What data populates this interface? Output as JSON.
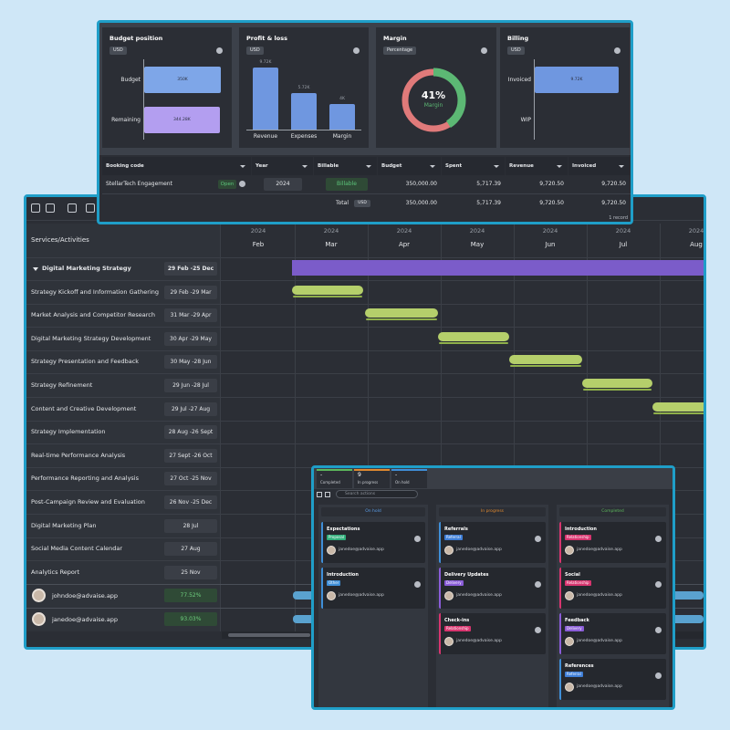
{
  "dashboard": {
    "budget_position": {
      "title": "Budget position",
      "tag": "USD",
      "categories": [
        "Budget",
        "Remaining"
      ],
      "values": [
        350000,
        344282.61
      ],
      "value_labels": [
        "350K",
        "344.28K"
      ],
      "colors": [
        "#7ea6e8",
        "#b39ef0"
      ]
    },
    "profit_loss": {
      "title": "Profit & loss",
      "tag": "USD",
      "categories": [
        "Revenue",
        "Expenses",
        "Margin"
      ],
      "values": [
        9720.5,
        5717.39,
        4003.11
      ],
      "value_labels": [
        "9.72K",
        "5.72K",
        "4K"
      ],
      "color": "#6f97e0"
    },
    "margin": {
      "title": "Margin",
      "tag": "Percentage",
      "value": 41,
      "value_label": "41%",
      "label": "Margin",
      "color": "#5cb874",
      "rest_color": "#e07a7a"
    },
    "billing": {
      "title": "Billing",
      "tag": "USD",
      "categories": [
        "Invoiced",
        "WIP"
      ],
      "values": [
        9720.5,
        0
      ],
      "value_labels": [
        "9.72K",
        null
      ],
      "color": "#6f97e0"
    }
  },
  "table": {
    "headers": [
      "Booking code",
      "Year",
      "Billable",
      "Budget",
      "Spent",
      "Revenue",
      "Invoiced"
    ],
    "row": {
      "name": "StellarTech Engagement",
      "status": "Open",
      "year": "2024",
      "billable": "Billable",
      "cells": [
        "350,000.00",
        "5,717.39",
        "9,720.50",
        "9,720.50"
      ]
    },
    "total": {
      "label": "Total",
      "currency": "USD",
      "cells": [
        "350,000.00",
        "5,717.39",
        "9,720.50",
        "9,720.50"
      ]
    },
    "footer": "1 record"
  },
  "gantt": {
    "header": "Services/Activities",
    "year": "2024",
    "months": [
      "Feb",
      "Mar",
      "Apr",
      "May",
      "Jun",
      "Jul",
      "Aug"
    ],
    "summary": {
      "name": "Digital Marketing Strategy",
      "dates": "29 Feb -25 Dec",
      "color": "#7b5cc9"
    },
    "bar_color": "#b5cf6b",
    "tasks": [
      {
        "name": "Strategy Kickoff and Information Gathering",
        "dates": "29 Feb -29 Mar"
      },
      {
        "name": "Market Analysis and Competitor Research",
        "dates": "31 Mar -29 Apr"
      },
      {
        "name": "Digital Marketing Strategy Development",
        "dates": "30 Apr -29 May"
      },
      {
        "name": "Strategy Presentation and Feedback",
        "dates": "30 May -28 Jun"
      },
      {
        "name": "Strategy Refinement",
        "dates": "29 Jun -28 Jul"
      },
      {
        "name": "Content and Creative Development",
        "dates": "29 Jul -27 Aug"
      },
      {
        "name": "Strategy Implementation",
        "dates": "28 Aug -26 Sept"
      },
      {
        "name": "Real-time Performance Analysis",
        "dates": "27 Sept -26 Oct"
      },
      {
        "name": "Performance Reporting and Analysis",
        "dates": "27 Oct -25 Nov"
      },
      {
        "name": "Post-Campaign Review and Evaluation",
        "dates": "26 Nov -25 Dec"
      },
      {
        "name": "Digital Marketing Plan",
        "dates": "28 Jul"
      },
      {
        "name": "Social Media Content Calendar",
        "dates": "27 Aug"
      },
      {
        "name": "Analytics Report",
        "dates": "25 Nov"
      }
    ],
    "users": [
      {
        "email": "johndoe@advaise.app",
        "value": "77.52%"
      },
      {
        "email": "janedoe@advaise.app",
        "value": "93.03%"
      }
    ]
  },
  "kanban": {
    "tabs": [
      {
        "count": "-",
        "label": "Completed",
        "color": "#5cb85c"
      },
      {
        "count": "9",
        "label": "In progress",
        "color": "#e0892f"
      },
      {
        "count": "-",
        "label": "On hold",
        "color": "#3f8fd8"
      }
    ],
    "search": "Search actions",
    "columns": [
      {
        "title": "On hold",
        "color": "#5a9ee8",
        "cards": [
          {
            "title": "Expectations",
            "tag": "Proposal",
            "tag_color": "#2fae7a",
            "color": "#3f8fd8",
            "assignee": "janedoe@advaise.app"
          },
          {
            "title": "Introduction",
            "tag": "Other",
            "tag_color": "#3f8fd8",
            "color": "#3f8fd8",
            "assignee": "janedoe@advaise.app"
          }
        ]
      },
      {
        "title": "In progress",
        "color": "#e0892f",
        "cards": [
          {
            "title": "Referrals",
            "tag": "Referral",
            "tag_color": "#3f7fd8",
            "color": "#3f8fd8",
            "assignee": "janedoe@advaise.app"
          },
          {
            "title": "Delivery Updates",
            "tag": "Delivery",
            "tag_color": "#8a5cd8",
            "color": "#8a5cd8",
            "assignee": "janedoe@advaise.app"
          },
          {
            "title": "Check-ins",
            "tag": "Relationship",
            "tag_color": "#d8356f",
            "color": "#d8356f",
            "assignee": "janedoe@advaise.app"
          }
        ]
      },
      {
        "title": "Completed",
        "color": "#5cb85c",
        "cards": [
          {
            "title": "Introduction",
            "tag": "Relationship",
            "tag_color": "#d8356f",
            "color": "#d8356f",
            "assignee": "janedoe@advaise.app"
          },
          {
            "title": "Social",
            "tag": "Relationship",
            "tag_color": "#d8356f",
            "color": "#d8356f",
            "assignee": "janedoe@advaise.app"
          },
          {
            "title": "Feedback",
            "tag": "Delivery",
            "tag_color": "#8a5cd8",
            "color": "#8a5cd8",
            "assignee": "janedoe@advaise.app"
          },
          {
            "title": "References",
            "tag": "Referral",
            "tag_color": "#3f7fd8",
            "color": "#3f8fd8",
            "assignee": "janedoe@advaise.app"
          }
        ]
      }
    ]
  }
}
